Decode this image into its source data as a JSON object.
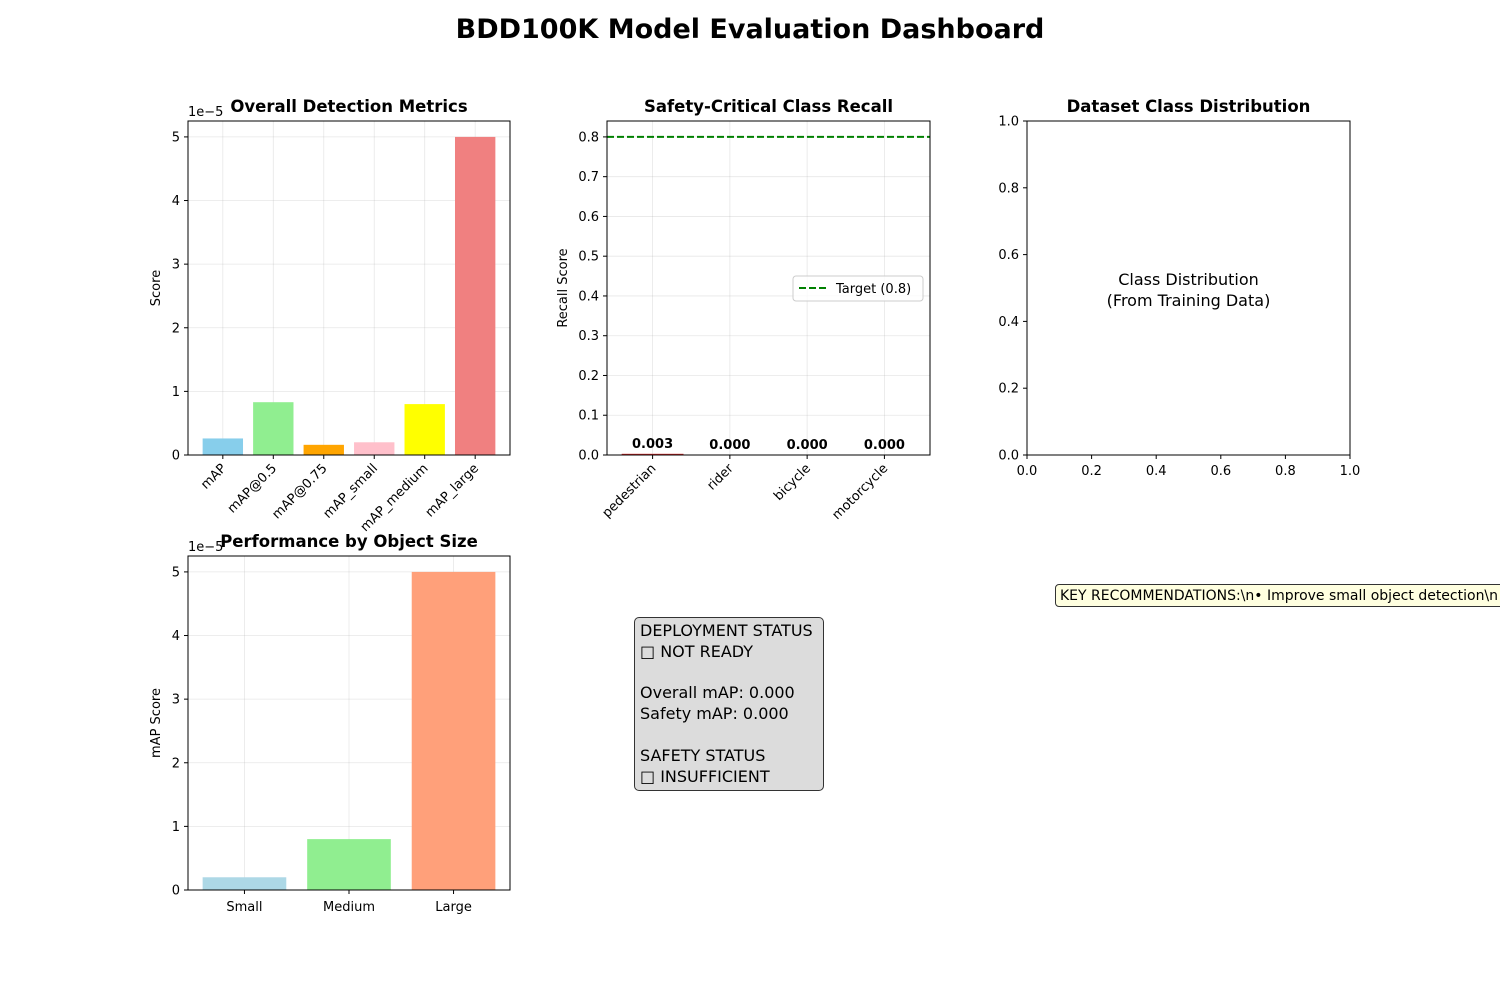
{
  "page_title": "BDD100K Model Evaluation Dashboard",
  "chart_data": [
    {
      "type": "bar",
      "title": "Overall Detection Metrics",
      "xlabel": "",
      "ylabel": "Score",
      "offset_label": "1e−5",
      "categories": [
        "mAP",
        "mAP@0.5",
        "mAP@0.75",
        "mAP_small",
        "mAP_medium",
        "mAP_large"
      ],
      "values": [
        2.6e-06,
        8.3e-06,
        1.6e-06,
        2e-06,
        8e-06,
        5e-05
      ],
      "colors": [
        "#87ceeb",
        "#90ee90",
        "#ffa500",
        "#ffc0cb",
        "#ffff00",
        "#f08080"
      ],
      "ylim": [
        0,
        5.25e-05
      ],
      "yticks": [
        0,
        1e-05,
        2e-05,
        3e-05,
        4e-05,
        5e-05
      ],
      "ytick_labels": [
        "0",
        "1",
        "2",
        "3",
        "4",
        "5"
      ],
      "xtick_rotation": -45,
      "grid": true
    },
    {
      "type": "bar",
      "title": "Safety-Critical Class Recall",
      "xlabel": "",
      "ylabel": "Recall Score",
      "categories": [
        "pedestrian",
        "rider",
        "bicycle",
        "motorcycle"
      ],
      "values": [
        0.003,
        0.0,
        0.0,
        0.0
      ],
      "value_labels": [
        "0.003",
        "0.000",
        "0.000",
        "0.000"
      ],
      "colors": [
        "#d62728",
        "#d62728",
        "#d62728",
        "#d62728"
      ],
      "ylim": [
        0,
        0.84
      ],
      "yticks": [
        0,
        0.1,
        0.2,
        0.3,
        0.4,
        0.5,
        0.6,
        0.7,
        0.8
      ],
      "ytick_labels": [
        "0.0",
        "0.1",
        "0.2",
        "0.3",
        "0.4",
        "0.5",
        "0.6",
        "0.7",
        "0.8"
      ],
      "target_line": {
        "value": 0.8,
        "label": "Target (0.8)",
        "color": "#008000"
      },
      "legend": "center-right",
      "xtick_rotation": -45,
      "grid": true
    },
    {
      "type": "other",
      "title": "Dataset Class Distribution",
      "placeholder_lines": [
        "Class Distribution",
        "(From Training Data)"
      ],
      "xlim": [
        0,
        1
      ],
      "ylim": [
        0,
        1
      ],
      "xticks": [
        0,
        0.2,
        0.4,
        0.6,
        0.8,
        1.0
      ],
      "xtick_labels": [
        "0.0",
        "0.2",
        "0.4",
        "0.6",
        "0.8",
        "1.0"
      ],
      "yticks": [
        0,
        0.2,
        0.4,
        0.6,
        0.8,
        1.0
      ],
      "ytick_labels": [
        "0.0",
        "0.2",
        "0.4",
        "0.6",
        "0.8",
        "1.0"
      ],
      "grid": false
    },
    {
      "type": "bar",
      "title": "Performance by Object Size",
      "xlabel": "",
      "ylabel": "mAP Score",
      "offset_label": "1e−5",
      "categories": [
        "Small",
        "Medium",
        "Large"
      ],
      "values": [
        2e-06,
        8e-06,
        5e-05
      ],
      "colors": [
        "#add8e6",
        "#90ee90",
        "#ffa07a"
      ],
      "ylim": [
        0,
        5.25e-05
      ],
      "yticks": [
        0,
        1e-05,
        2e-05,
        3e-05,
        4e-05,
        5e-05
      ],
      "ytick_labels": [
        "0",
        "1",
        "2",
        "3",
        "4",
        "5"
      ],
      "xtick_rotation": 0,
      "grid": true
    }
  ],
  "status_box": {
    "lines": [
      "DEPLOYMENT STATUS",
      "□ NOT READY",
      "",
      "Overall mAP: 0.000",
      "Safety mAP: 0.000",
      "",
      "SAFETY STATUS",
      "□ INSUFFICIENT"
    ],
    "background": "#dcdcdc"
  },
  "recommendations_text": "KEY RECOMMENDATIONS:\\n• Improve small object detection\\n• Boost safety-critical class recall"
}
